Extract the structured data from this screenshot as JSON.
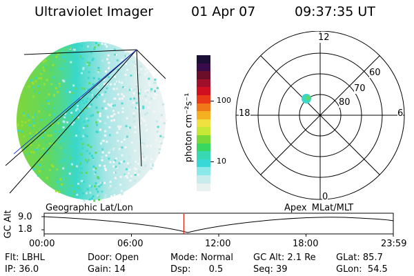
{
  "header": {
    "instrument": "Ultraviolet Imager",
    "date": "01 Apr 07",
    "time": "09:37:35 UT"
  },
  "colorbar": {
    "unit_label": "photon cm⁻²s⁻¹",
    "ticks": [
      "100",
      "10"
    ],
    "colors": [
      "#1b0f38",
      "#3a0b4a",
      "#6b0e2a",
      "#a0102a",
      "#d01020",
      "#e83a18",
      "#f07818",
      "#f4b020",
      "#f0e040",
      "#c8e838",
      "#78d838",
      "#38d860",
      "#38d8b0",
      "#38d8d8",
      "#8ae8e8",
      "#c8ecec",
      "#e8f0f0"
    ]
  },
  "polar": {
    "mlt_labels": {
      "top": "12",
      "left": "18",
      "right": "6",
      "bottom": "0"
    },
    "lat_labels": [
      "60",
      "70",
      "80"
    ]
  },
  "orbit": {
    "y_axis_label": "GC Alt",
    "y_ticks": [
      "9.0",
      "1.8"
    ],
    "left_title": "Geographic Lat/Lon",
    "right_title": "Apex MLat/MLT",
    "x_ticks": [
      "00:00",
      "06:00",
      "12:00",
      "18:00",
      "23:59"
    ],
    "current_time_fraction": 0.4
  },
  "info": {
    "flt_label": "Flt:",
    "flt_value": "LBHL",
    "ip_label": "IP:",
    "ip_value": "36.0",
    "door_label": "Door:",
    "door_value": "Open",
    "gain_label": "Gain:",
    "gain_value": "14",
    "mode_label": "Mode:",
    "mode_value": "Normal",
    "dsp_label": "Dsp:",
    "dsp_value": "0.5",
    "gcalt_label": "GC Alt:",
    "gcalt_value": "2.1 Re",
    "seq_label": "Seq:",
    "seq_value": "39",
    "glat_label": "GLat:",
    "glat_value": "85.7",
    "glon_label": "GLon:",
    "glon_value": "54.5"
  }
}
